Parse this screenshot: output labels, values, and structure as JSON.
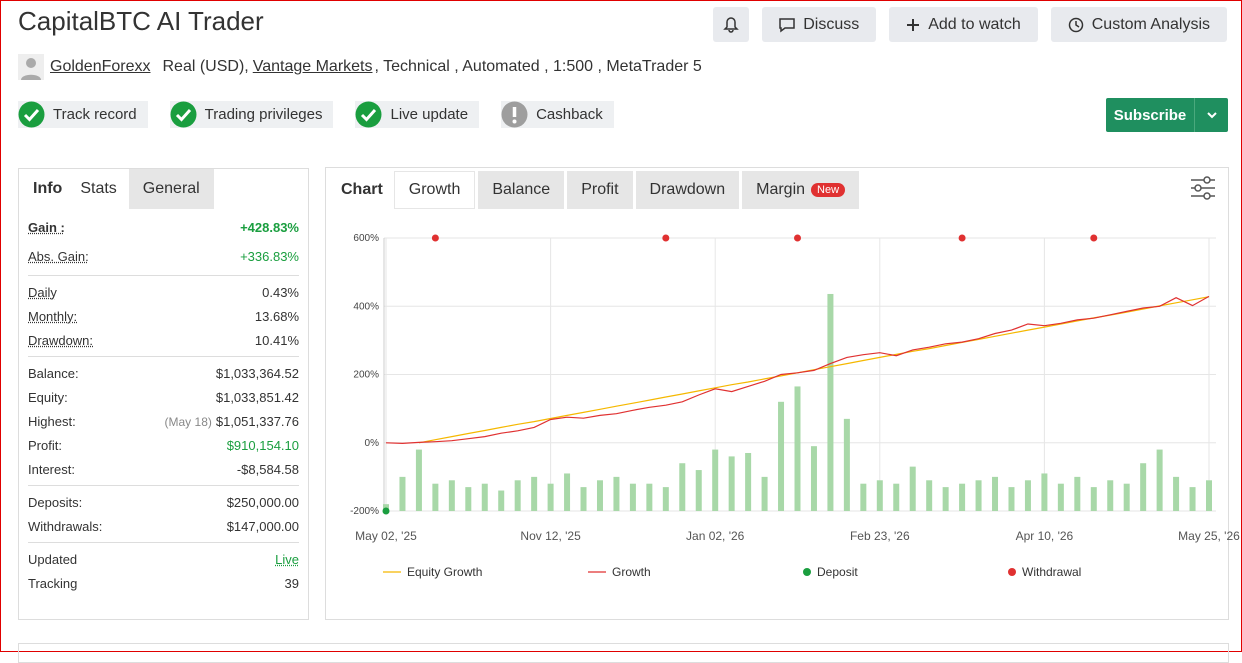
{
  "header": {
    "title": "CapitalBTC AI Trader",
    "buttons": [
      "Discuss",
      "Add to watch",
      "Custom Analysis"
    ]
  },
  "account": {
    "author": "GoldenForexx",
    "type": "Real (USD),",
    "broker": "Vantage Markets",
    "details": ", Technical , Automated , 1:500 , MetaTrader 5"
  },
  "badges": [
    {
      "label": "Track record",
      "ok": true
    },
    {
      "label": "Trading privileges",
      "ok": true
    },
    {
      "label": "Live update",
      "ok": true
    },
    {
      "label": "Cashback",
      "ok": false
    }
  ],
  "subscribe": "Subscribe",
  "stats_panel": {
    "tabs": [
      "Info",
      "Stats",
      "General"
    ],
    "groups": [
      [
        {
          "label": "Gain :",
          "value": "+428.83%",
          "color": "#1a9e3f"
        },
        {
          "label": "Abs. Gain:",
          "value": "+336.83%",
          "color": "#1a9e3f"
        }
      ],
      [
        {
          "label": "Daily",
          "value": "0.43%"
        },
        {
          "label": "Monthly:",
          "value": "13.68%"
        },
        {
          "label": "Drawdown:",
          "value": "10.41%"
        }
      ],
      [
        {
          "label": "Balance:",
          "value": "$1,033,364.52"
        },
        {
          "label": "Equity:",
          "value": "$1,033,851.42"
        },
        {
          "label": "Highest:",
          "note": "(May 18)",
          "value": "$1,051,337.76"
        },
        {
          "label": "Profit:",
          "value": "$910,154.10",
          "color": "#1a9e3f"
        },
        {
          "label": "Interest:",
          "value": "-$8,584.58"
        }
      ],
      [
        {
          "label": "Deposits:",
          "value": "$250,000.00"
        },
        {
          "label": "Withdrawals:",
          "value": "$147,000.00"
        }
      ],
      [
        {
          "label": "Updated",
          "value": "Live",
          "color": "#1a9e3f"
        },
        {
          "label": "Tracking",
          "value": "39"
        }
      ]
    ]
  },
  "chart_panel": {
    "tabs": [
      "Chart",
      "Growth",
      "Balance",
      "Profit",
      "Drawdown",
      "Margin"
    ],
    "new_badge": "New"
  },
  "chart_data": {
    "type": "line",
    "categories": [
      "May 02, '25",
      null,
      null,
      null,
      null,
      null,
      null,
      null,
      null,
      null,
      "Nov 12, '25",
      null,
      null,
      null,
      null,
      null,
      null,
      null,
      null,
      null,
      "Jan 02, '26",
      null,
      null,
      null,
      null,
      null,
      null,
      null,
      null,
      null,
      "Feb 23, '26",
      null,
      null,
      null,
      null,
      null,
      null,
      null,
      null,
      null,
      "Apr 10, '26",
      null,
      null,
      null,
      null,
      null,
      null,
      null,
      null,
      null,
      "May 25, '26"
    ],
    "ylim": [
      -200,
      600
    ],
    "yticks": [
      {
        "value": -200,
        "label": "-200%"
      },
      {
        "value": 0,
        "label": "0%"
      },
      {
        "value": 200,
        "label": "200%"
      },
      {
        "value": 400,
        "label": "400%"
      },
      {
        "value": 600,
        "label": "600%"
      }
    ],
    "grid": true,
    "series": [
      {
        "type": "bar",
        "color": "#a8d8a8",
        "values": [
          -180,
          -100,
          -20,
          -120,
          -110,
          -130,
          -120,
          -140,
          -110,
          -100,
          -120,
          -90,
          -130,
          -110,
          -100,
          -120,
          -120,
          -130,
          -60,
          -80,
          -20,
          -40,
          -30,
          -100,
          120,
          165,
          -10,
          436,
          70,
          -120,
          -110,
          -120,
          -70,
          -110,
          -130,
          -120,
          -110,
          -100,
          -130,
          -110,
          -90,
          -120,
          -100,
          -130,
          -110,
          -120,
          -60,
          -20,
          -100,
          -130,
          -110
        ]
      },
      {
        "type": "line",
        "name": "Equity Growth",
        "color": "#f5b800",
        "values": [
          null,
          null,
          0,
          9,
          18,
          27,
          36,
          45,
          54,
          62,
          71,
          80,
          89,
          98,
          107,
          116,
          125,
          134,
          143,
          152,
          161,
          170,
          178,
          187,
          196,
          205,
          214,
          223,
          232,
          241,
          250,
          259,
          268,
          276,
          285,
          294,
          303,
          312,
          321,
          330,
          339,
          348,
          357,
          366,
          374,
          383,
          392,
          401,
          410,
          419,
          428
        ]
      },
      {
        "type": "line",
        "name": "Growth",
        "color": "#e03131",
        "values": [
          0,
          -2,
          1,
          3,
          6,
          12,
          18,
          28,
          35,
          45,
          68,
          75,
          72,
          80,
          85,
          95,
          104,
          110,
          120,
          140,
          158,
          150,
          165,
          180,
          200,
          205,
          212,
          232,
          250,
          258,
          264,
          255,
          272,
          280,
          290,
          295,
          305,
          320,
          330,
          348,
          343,
          350,
          360,
          365,
          375,
          385,
          395,
          400,
          425,
          402,
          429
        ]
      },
      {
        "type": "scatter",
        "name": "Deposit",
        "color": "#1a9e3f",
        "values": [
          -200,
          null,
          null,
          null,
          null,
          null,
          null,
          null,
          null,
          null,
          null,
          null,
          null,
          null,
          null,
          null,
          null,
          null,
          null,
          null,
          null,
          null,
          null,
          null,
          null,
          null,
          null,
          null,
          null,
          null,
          null,
          null,
          null,
          null,
          null,
          null,
          null,
          null,
          null,
          null,
          null,
          null,
          null,
          null,
          null,
          null,
          null,
          null,
          null,
          null,
          null
        ]
      },
      {
        "type": "scatter",
        "name": "Withdrawal",
        "color": "#e03131",
        "values": [
          null,
          null,
          null,
          600,
          null,
          null,
          null,
          null,
          null,
          null,
          null,
          null,
          null,
          null,
          null,
          null,
          null,
          600,
          null,
          null,
          null,
          null,
          null,
          null,
          null,
          600,
          null,
          null,
          null,
          null,
          null,
          null,
          null,
          null,
          null,
          600,
          null,
          null,
          null,
          null,
          null,
          null,
          null,
          600,
          null,
          null,
          null,
          null,
          null,
          null,
          null
        ]
      }
    ]
  }
}
